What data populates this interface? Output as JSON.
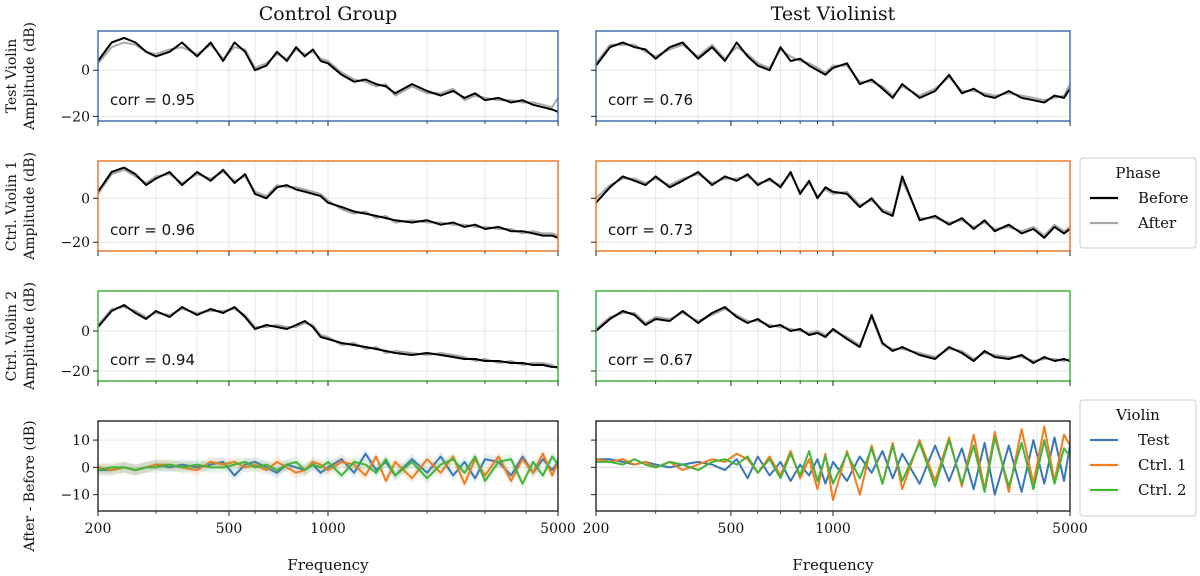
{
  "chart_data": {
    "type": "line",
    "column_titles": [
      "Control Group",
      "Test Violinist"
    ],
    "x_axis": {
      "label": "Frequency",
      "scale": "log",
      "range": [
        200,
        5000
      ],
      "tick_labels": [
        "200",
        "500",
        "1000",
        "5000"
      ],
      "tick_values": [
        200,
        500,
        1000,
        5000
      ]
    },
    "rows": [
      {
        "ylabel_line1": "Test Violin",
        "ylabel_line2": "Amplitude (dB)",
        "frame_color": "#4a7bb7",
        "ylim": [
          -22,
          17
        ],
        "yticks": [
          0,
          -20
        ],
        "yticklabels": [
          "0",
          "−20"
        ]
      },
      {
        "ylabel_line1": "Ctrl. Violin 1",
        "ylabel_line2": "Amplitude (dB)",
        "frame_color": "#e8833a",
        "ylim": [
          -24,
          17
        ],
        "yticks": [
          0,
          -20
        ],
        "yticklabels": [
          "0",
          "−20"
        ]
      },
      {
        "ylabel_line1": "Ctrl. Violin 2",
        "ylabel_line2": "Amplitude (dB)",
        "frame_color": "#4cb848",
        "ylim": [
          -25,
          20
        ],
        "yticks": [
          0,
          -20
        ],
        "yticklabels": [
          "0",
          "−20"
        ]
      },
      {
        "ylabel_line1": "After - Before (dB)",
        "ylabel_line2": "",
        "frame_color": "#000000",
        "ylim": [
          -16,
          17
        ],
        "yticks": [
          10,
          0,
          -10
        ],
        "yticklabels": [
          "10",
          "0",
          "−10"
        ]
      }
    ],
    "corr_labels": [
      [
        "corr = 0.95",
        "corr = 0.76"
      ],
      [
        "corr = 0.96",
        "corr = 0.73"
      ],
      [
        "corr = 0.94",
        "corr = 0.67"
      ]
    ],
    "phase_legend": {
      "title": "Phase",
      "entries": [
        {
          "name": "Before",
          "color": "#000000"
        },
        {
          "name": "After",
          "color": "#a8a8a8"
        }
      ]
    },
    "violin_legend": {
      "title": "Violin",
      "entries": [
        {
          "name": "Test",
          "color": "#3a78b5"
        },
        {
          "name": "Ctrl. 1",
          "color": "#f07d1e"
        },
        {
          "name": "Ctrl. 2",
          "color": "#44b43a"
        }
      ]
    },
    "series_before": {
      "x": [
        200,
        220,
        240,
        260,
        280,
        300,
        330,
        360,
        400,
        440,
        480,
        520,
        560,
        600,
        650,
        700,
        750,
        800,
        850,
        900,
        950,
        1000,
        1100,
        1200,
        1300,
        1400,
        1500,
        1600,
        1800,
        2000,
        2200,
        2400,
        2600,
        2800,
        3000,
        3300,
        3600,
        3900,
        4200,
        4500,
        4800,
        5000
      ],
      "test_violin": [
        [
          4,
          12,
          14,
          12,
          8,
          6,
          8,
          12,
          6,
          12,
          4,
          12,
          8,
          0,
          2,
          8,
          4,
          10,
          6,
          9,
          4,
          3,
          -2,
          -5,
          -4,
          -6,
          -7,
          -10,
          -6,
          -9,
          -11,
          -9,
          -12,
          -10,
          -13,
          -12,
          -14,
          -13,
          -15,
          -16,
          -17,
          -18
        ],
        [
          2,
          10,
          12,
          10,
          9,
          5,
          10,
          12,
          5,
          10,
          4,
          12,
          6,
          2,
          0,
          10,
          4,
          5,
          2,
          0,
          -2,
          1,
          3,
          -6,
          -4,
          -8,
          -12,
          -6,
          -12,
          -9,
          -2,
          -10,
          -8,
          -11,
          -12,
          -9,
          -12,
          -13,
          -14,
          -11,
          -12,
          -8
        ]
      ],
      "ctrl_violin_1": [
        [
          3,
          12,
          14,
          11,
          6,
          9,
          12,
          6,
          12,
          8,
          13,
          7,
          11,
          2,
          0,
          5,
          6,
          4,
          3,
          2,
          1,
          -2,
          -4,
          -6,
          -7,
          -8,
          -9,
          -10,
          -11,
          -10,
          -12,
          -11,
          -13,
          -12,
          -14,
          -13,
          -15,
          -15,
          -16,
          -17,
          -17,
          -18
        ],
        [
          -2,
          5,
          10,
          8,
          6,
          10,
          5,
          8,
          12,
          6,
          10,
          8,
          11,
          6,
          9,
          5,
          12,
          2,
          8,
          0,
          5,
          3,
          2,
          -4,
          0,
          -6,
          -8,
          10,
          -10,
          -8,
          -12,
          -9,
          -14,
          -10,
          -15,
          -12,
          -16,
          -14,
          -18,
          -13,
          -16,
          -14
        ]
      ],
      "ctrl_violin_2": [
        [
          2,
          10,
          13,
          9,
          6,
          10,
          7,
          12,
          8,
          11,
          9,
          12,
          7,
          1,
          3,
          2,
          1,
          3,
          5,
          2,
          -3,
          -4,
          -6,
          -7,
          -8,
          -9,
          -10,
          -11,
          -12,
          -11,
          -12,
          -13,
          -14,
          -14,
          -15,
          -15,
          -16,
          -16,
          -17,
          -17,
          -18,
          -18
        ],
        [
          0,
          6,
          10,
          8,
          3,
          6,
          5,
          10,
          4,
          9,
          12,
          7,
          4,
          6,
          2,
          3,
          0,
          1,
          -2,
          -1,
          -3,
          1,
          -4,
          -8,
          8,
          -6,
          -10,
          -8,
          -12,
          -14,
          -8,
          -11,
          -15,
          -10,
          -13,
          -14,
          -12,
          -16,
          -13,
          -15,
          -14,
          -15
        ]
      ]
    },
    "series_after": {
      "x": [
        200,
        220,
        240,
        260,
        280,
        300,
        330,
        360,
        400,
        440,
        480,
        520,
        560,
        600,
        650,
        700,
        750,
        800,
        850,
        900,
        950,
        1000,
        1100,
        1200,
        1300,
        1400,
        1500,
        1600,
        1800,
        2000,
        2200,
        2400,
        2600,
        2800,
        3000,
        3300,
        3600,
        3900,
        4200,
        4500,
        4800,
        5000
      ],
      "test_violin": [
        [
          3,
          10,
          12,
          11,
          8,
          7,
          9,
          10,
          7,
          11,
          5,
          10,
          9,
          1,
          3,
          7,
          5,
          9,
          7,
          8,
          5,
          4,
          -1,
          -4,
          -5,
          -7,
          -6,
          -11,
          -7,
          -10,
          -10,
          -8,
          -13,
          -11,
          -12,
          -13,
          -13,
          -14,
          -14,
          -15,
          -16,
          -12
        ],
        [
          3,
          11,
          11,
          11,
          8,
          6,
          9,
          11,
          6,
          11,
          5,
          10,
          7,
          3,
          1,
          9,
          6,
          4,
          3,
          1,
          -1,
          2,
          2,
          -5,
          -5,
          -7,
          -11,
          -7,
          -11,
          -8,
          -3,
          -9,
          -9,
          -10,
          -11,
          -10,
          -11,
          -12,
          -13,
          -12,
          -11,
          -6
        ]
      ],
      "ctrl_violin_1": [
        [
          2,
          11,
          13,
          10,
          7,
          10,
          11,
          7,
          11,
          9,
          12,
          8,
          10,
          3,
          1,
          6,
          5,
          5,
          4,
          3,
          2,
          -1,
          -5,
          -7,
          -6,
          -9,
          -8,
          -11,
          -10,
          -11,
          -11,
          -12,
          -12,
          -13,
          -13,
          -14,
          -14,
          -16,
          -15,
          -16,
          -16,
          -17
        ],
        [
          0,
          6,
          9,
          9,
          7,
          9,
          6,
          9,
          11,
          7,
          9,
          9,
          10,
          7,
          8,
          6,
          11,
          3,
          7,
          1,
          4,
          2,
          3,
          -3,
          -1,
          -5,
          -7,
          8,
          -9,
          -9,
          -11,
          -10,
          -13,
          -11,
          -14,
          -13,
          -15,
          -13,
          -17,
          -12,
          -15,
          -13
        ]
      ],
      "ctrl_violin_2": [
        [
          3,
          11,
          12,
          10,
          7,
          9,
          8,
          11,
          9,
          10,
          10,
          11,
          8,
          2,
          2,
          3,
          2,
          2,
          4,
          3,
          -2,
          -3,
          -7,
          -6,
          -9,
          -8,
          -11,
          -10,
          -11,
          -12,
          -11,
          -12,
          -13,
          -15,
          -14,
          -16,
          -15,
          -17,
          -16,
          -16,
          -17,
          -19
        ],
        [
          1,
          7,
          9,
          9,
          4,
          7,
          6,
          9,
          5,
          8,
          11,
          8,
          5,
          5,
          3,
          2,
          1,
          0,
          -1,
          0,
          -2,
          0,
          -3,
          -7,
          7,
          -7,
          -9,
          -9,
          -11,
          -13,
          -9,
          -10,
          -14,
          -11,
          -12,
          -13,
          -13,
          -15,
          -14,
          -14,
          -15,
          -14
        ]
      ]
    },
    "series_difference": {
      "x": [
        200,
        220,
        240,
        260,
        280,
        300,
        330,
        360,
        400,
        440,
        480,
        520,
        560,
        600,
        650,
        700,
        750,
        800,
        850,
        900,
        950,
        1000,
        1100,
        1200,
        1300,
        1400,
        1500,
        1600,
        1800,
        2000,
        2200,
        2400,
        2600,
        2800,
        3000,
        3300,
        3600,
        3900,
        4200,
        4500,
        4800,
        5000
      ],
      "control_group": [
        {
          "name": "Test",
          "values": [
            -1,
            -1,
            0,
            -1,
            0,
            1,
            0,
            1,
            0,
            1,
            2,
            -3,
            1,
            2,
            0,
            -2,
            1,
            0,
            -1,
            1,
            -2,
            0,
            3,
            -2,
            5,
            -1,
            2,
            -3,
            3,
            -2,
            4,
            -3,
            2,
            -4,
            3,
            2,
            -3,
            4,
            -2,
            3,
            -1,
            2
          ]
        },
        {
          "name": "Ctrl. 1",
          "values": [
            0,
            -1,
            0,
            -1,
            0,
            1,
            1,
            0,
            -1,
            2,
            1,
            2,
            0,
            1,
            -1,
            2,
            0,
            -2,
            -1,
            2,
            1,
            -1,
            2,
            1,
            -3,
            4,
            -5,
            2,
            -4,
            3,
            -2,
            4,
            -6,
            3,
            -3,
            4,
            -5,
            3,
            -2,
            5,
            -3,
            2
          ]
        },
        {
          "name": "Ctrl. 2",
          "values": [
            -1,
            0,
            0,
            -1,
            0,
            0,
            1,
            0,
            1,
            0,
            0,
            1,
            2,
            0,
            1,
            -1,
            1,
            2,
            -1,
            1,
            0,
            2,
            -3,
            2,
            1,
            -2,
            3,
            -3,
            2,
            -4,
            1,
            3,
            -2,
            4,
            -5,
            2,
            3,
            -6,
            2,
            -3,
            4,
            1
          ]
        }
      ],
      "test_violinist": [
        {
          "name": "Test",
          "values": [
            3,
            3,
            2,
            1,
            2,
            1,
            0,
            1,
            2,
            1,
            -1,
            3,
            -4,
            4,
            -3,
            2,
            -5,
            1,
            -3,
            3,
            -6,
            2,
            -5,
            4,
            -2,
            6,
            -4,
            5,
            -6,
            8,
            -5,
            7,
            -8,
            9,
            -10,
            8,
            -9,
            10,
            -6,
            11,
            -5,
            8
          ]
        },
        {
          "name": "Ctrl. 1",
          "values": [
            3,
            2,
            3,
            1,
            2,
            0,
            2,
            -1,
            1,
            3,
            2,
            5,
            3,
            -2,
            4,
            -3,
            6,
            -4,
            3,
            -8,
            5,
            -12,
            6,
            -10,
            8,
            -6,
            9,
            -8,
            10,
            -5,
            11,
            -7,
            12,
            -8,
            13,
            -9,
            14,
            -6,
            15,
            -5,
            12,
            8
          ]
        },
        {
          "name": "Ctrl. 2",
          "values": [
            2,
            2,
            1,
            3,
            1,
            0,
            2,
            1,
            -1,
            2,
            3,
            1,
            4,
            -2,
            3,
            -4,
            5,
            -3,
            6,
            -5,
            4,
            -6,
            5,
            -4,
            7,
            -6,
            8,
            -5,
            9,
            -7,
            10,
            -6,
            8,
            -9,
            11,
            -7,
            9,
            -8,
            10,
            -6,
            7,
            4
          ]
        }
      ]
    }
  }
}
